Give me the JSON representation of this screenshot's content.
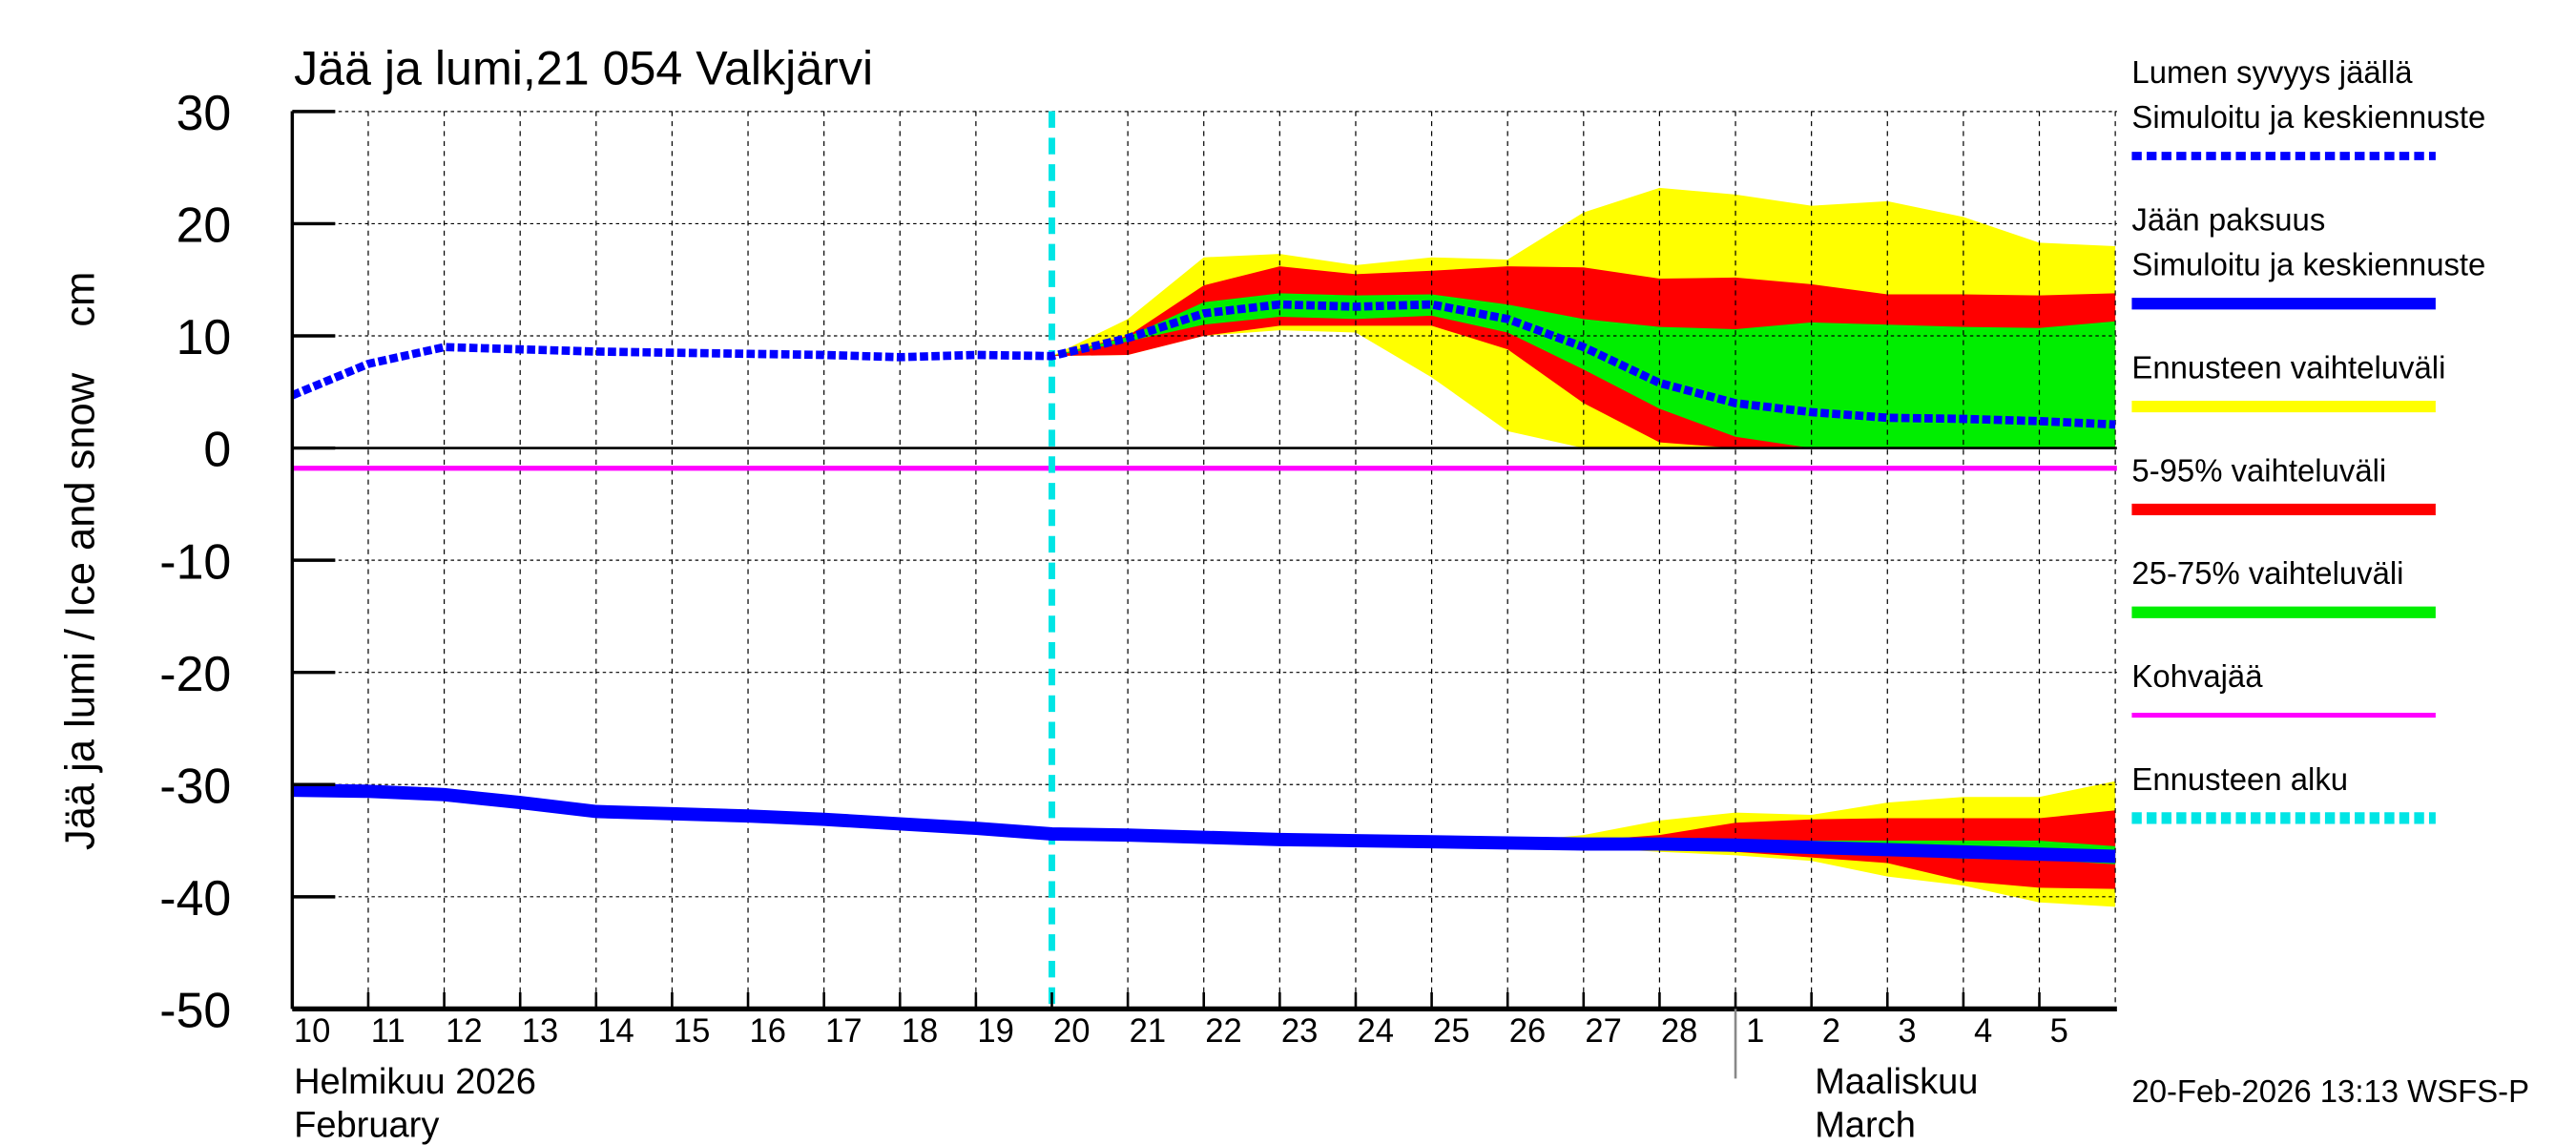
{
  "chart_data": {
    "type": "area",
    "title": "Jää ja lumi,21 054 Valkjärvi",
    "ylabel": "Jää ja lumi / Ice and snow    cm",
    "ylim": [
      -50,
      30
    ],
    "yticks": [
      30,
      20,
      10,
      0,
      -10,
      -20,
      -30,
      -40,
      -50
    ],
    "grid": true,
    "legend_position": "right",
    "x_dates": [
      "2026-02-10",
      "2026-02-11",
      "2026-02-12",
      "2026-02-13",
      "2026-02-14",
      "2026-02-15",
      "2026-02-16",
      "2026-02-17",
      "2026-02-18",
      "2026-02-19",
      "2026-02-20",
      "2026-02-21",
      "2026-02-22",
      "2026-02-23",
      "2026-02-24",
      "2026-02-25",
      "2026-02-26",
      "2026-02-27",
      "2026-02-28",
      "2026-03-01",
      "2026-03-02",
      "2026-03-03",
      "2026-03-04",
      "2026-03-05",
      "2026-03-06"
    ],
    "xtick_labels": [
      "10",
      "11",
      "12",
      "13",
      "14",
      "15",
      "16",
      "17",
      "18",
      "19",
      "20",
      "21",
      "22",
      "23",
      "24",
      "25",
      "26",
      "27",
      "28",
      "1",
      "2",
      "3",
      "4",
      "5"
    ],
    "month_labels": [
      {
        "fi": "Helmikuu  2026",
        "en": "February"
      },
      {
        "fi": "Maaliskuu",
        "en": "March"
      }
    ],
    "forecast_start": "2026-02-20",
    "kohvajaa_level": -1.8,
    "snow": {
      "name": "Lumen syvyys jäällä",
      "median": [
        4.7,
        7.5,
        9,
        8.8,
        8.6,
        8.5,
        8.4,
        8.3,
        8.1,
        8.3,
        8.2,
        9.8,
        12,
        12.8,
        12.6,
        12.8,
        11.5,
        9,
        5.8,
        4,
        3.2,
        2.7,
        2.6,
        2.4,
        2.1
      ],
      "band_start_index": 10,
      "range_upper": [
        8.2,
        11.5,
        17,
        17.3,
        16.3,
        17,
        16.8,
        21,
        23.2,
        22.6,
        21.6,
        22,
        20.6,
        18.3,
        18
      ],
      "range_lower": [
        8.2,
        8.3,
        10,
        10.5,
        10.3,
        6.3,
        1.5,
        0,
        0,
        0,
        0,
        0,
        0,
        0,
        0
      ],
      "p95": [
        8.2,
        10,
        14.5,
        16.2,
        15.5,
        15.8,
        16.2,
        16.1,
        15.1,
        15.2,
        14.6,
        13.7,
        13.7,
        13.6,
        13.8
      ],
      "p5": [
        8.2,
        8.3,
        10,
        10.9,
        10.9,
        10.9,
        8.8,
        4,
        0.5,
        0,
        0,
        0,
        0,
        0,
        0
      ],
      "p75": [
        8.2,
        9.9,
        13,
        13.8,
        13.6,
        13.7,
        12.8,
        11.5,
        10.8,
        10.6,
        11.2,
        11,
        10.8,
        10.7,
        11.3
      ],
      "p25": [
        8.2,
        9.5,
        11,
        11.7,
        11.5,
        11.8,
        10.3,
        7,
        3.5,
        1,
        0,
        0,
        0,
        0,
        0
      ]
    },
    "ice": {
      "name": "Jään paksuus",
      "median": [
        -30.5,
        -30.6,
        -30.9,
        -31.6,
        -32.4,
        -32.6,
        -32.8,
        -33.1,
        -33.5,
        -33.9,
        -34.4,
        -34.5,
        -34.7,
        -34.9,
        -35.0,
        -35.1,
        -35.2,
        -35.3,
        -35.3,
        -35.4,
        -35.6,
        -35.8,
        -36.0,
        -36.2,
        -36.4
      ],
      "band_start_index": 15,
      "range_upper": [
        -35.1,
        -35.1,
        -34.5,
        -33.2,
        -32.5,
        -32.7,
        -31.6,
        -31.1,
        -31.1,
        -29.7
      ],
      "range_lower": [
        -35.1,
        -35.3,
        -35.6,
        -36.0,
        -36.3,
        -36.8,
        -38.2,
        -39.0,
        -40.5,
        -40.9
      ],
      "p95": [
        -35.1,
        -35.1,
        -35.0,
        -34.5,
        -33.4,
        -33.1,
        -33.0,
        -33.0,
        -33.0,
        -32.3
      ],
      "p5": [
        -35.1,
        -35.3,
        -35.5,
        -35.8,
        -36.0,
        -36.5,
        -37.0,
        -38.6,
        -39.2,
        -39.3
      ],
      "p75": [
        -35.1,
        -35.1,
        -35.1,
        -35.1,
        -35.0,
        -35.0,
        -35.0,
        -35.0,
        -35.0,
        -35.5
      ],
      "p25": [
        -35.1,
        -35.2,
        -35.3,
        -35.4,
        -35.6,
        -36.0,
        -36.3,
        -36.6,
        -36.7,
        -37.1
      ]
    },
    "colors": {
      "median": "#0000ff",
      "range": "#ffff00",
      "p5_95": "#ff0000",
      "p25_75": "#00ee00",
      "kohvajaa": "#ff00ff",
      "forecast_start": "#00e5e5"
    }
  },
  "legend": [
    {
      "lines": [
        "Lumen syvyys jäällä",
        "Simuloitu ja keskiennuste"
      ],
      "color": "#0000ff",
      "style": "dotted"
    },
    {
      "lines": [
        "Jään paksuus",
        "Simuloitu ja keskiennuste"
      ],
      "color": "#0000ff",
      "style": "solid"
    },
    {
      "lines": [
        "Ennusteen vaihteluväli"
      ],
      "color": "#ffff00",
      "style": "solid"
    },
    {
      "lines": [
        "5-95% vaihteluväli"
      ],
      "color": "#ff0000",
      "style": "solid"
    },
    {
      "lines": [
        "25-75% vaihteluväli"
      ],
      "color": "#00ee00",
      "style": "solid"
    },
    {
      "lines": [
        "Kohvajää"
      ],
      "color": "#ff00ff",
      "style": "thin"
    },
    {
      "lines": [
        "Ennusteen alku"
      ],
      "color": "#00e5e5",
      "style": "dotted"
    }
  ],
  "timestamp": "20-Feb-2026 13:13 WSFS-P"
}
